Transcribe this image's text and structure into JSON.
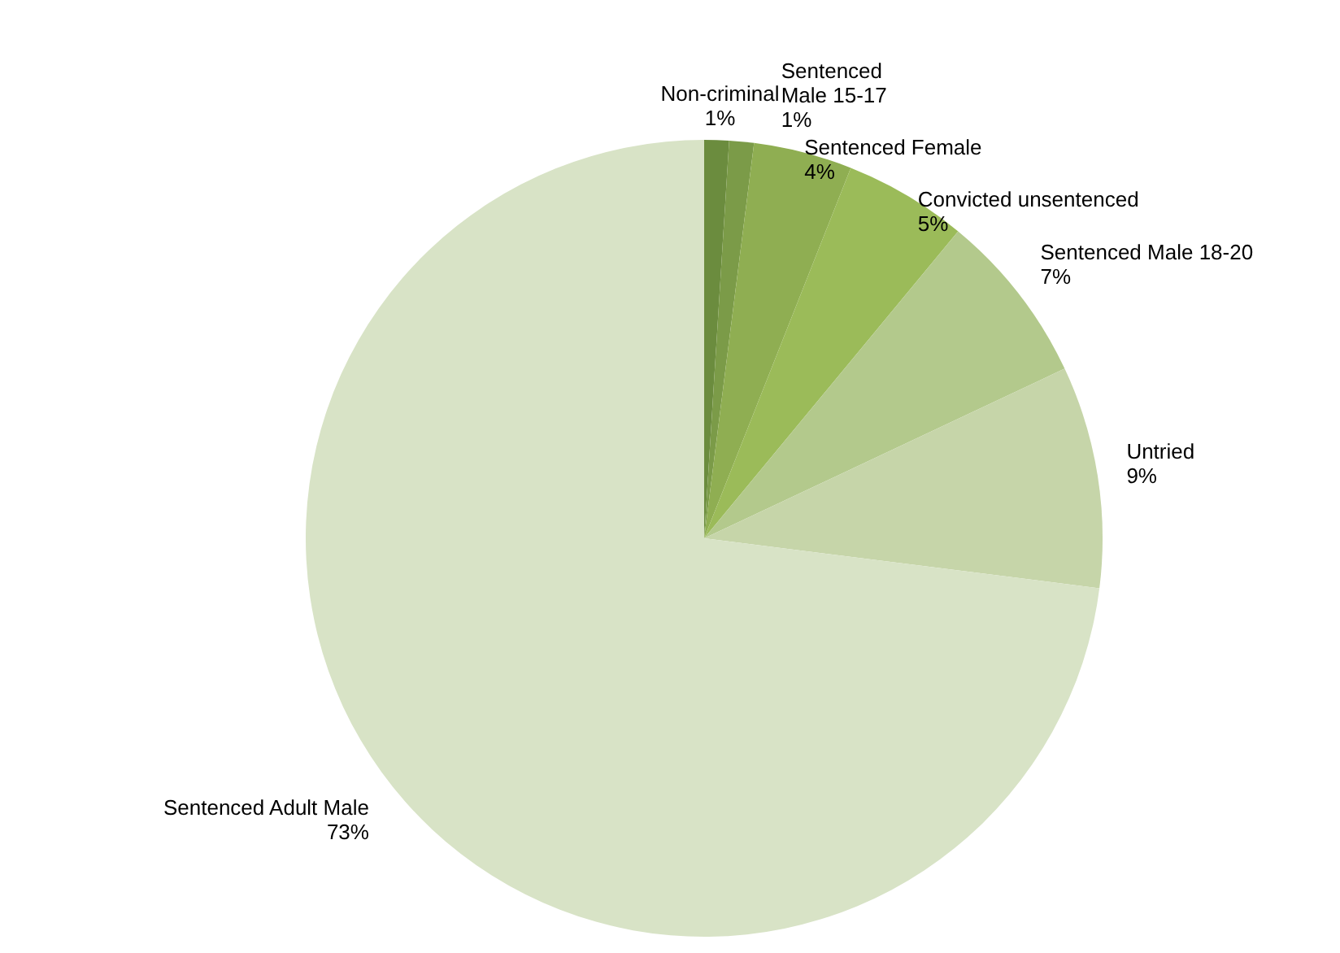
{
  "chart_data": {
    "type": "pie",
    "categories": [
      "Non-criminal",
      "Sentenced Male 15-17",
      "Sentenced Female",
      "Convicted unsentenced",
      "Sentenced Male 18-20",
      "Untried",
      "Sentenced Adult Male"
    ],
    "values": [
      1,
      1,
      4,
      5,
      7,
      9,
      73
    ],
    "value_labels": [
      "1%",
      "1%",
      "4%",
      "5%",
      "7%",
      "9%",
      "73%"
    ],
    "colors": [
      "#6b8c3e",
      "#7b9b48",
      "#8fae52",
      "#9bbb59",
      "#b3c98c",
      "#c6d5a9",
      "#d8e3c6"
    ],
    "legend": false
  }
}
